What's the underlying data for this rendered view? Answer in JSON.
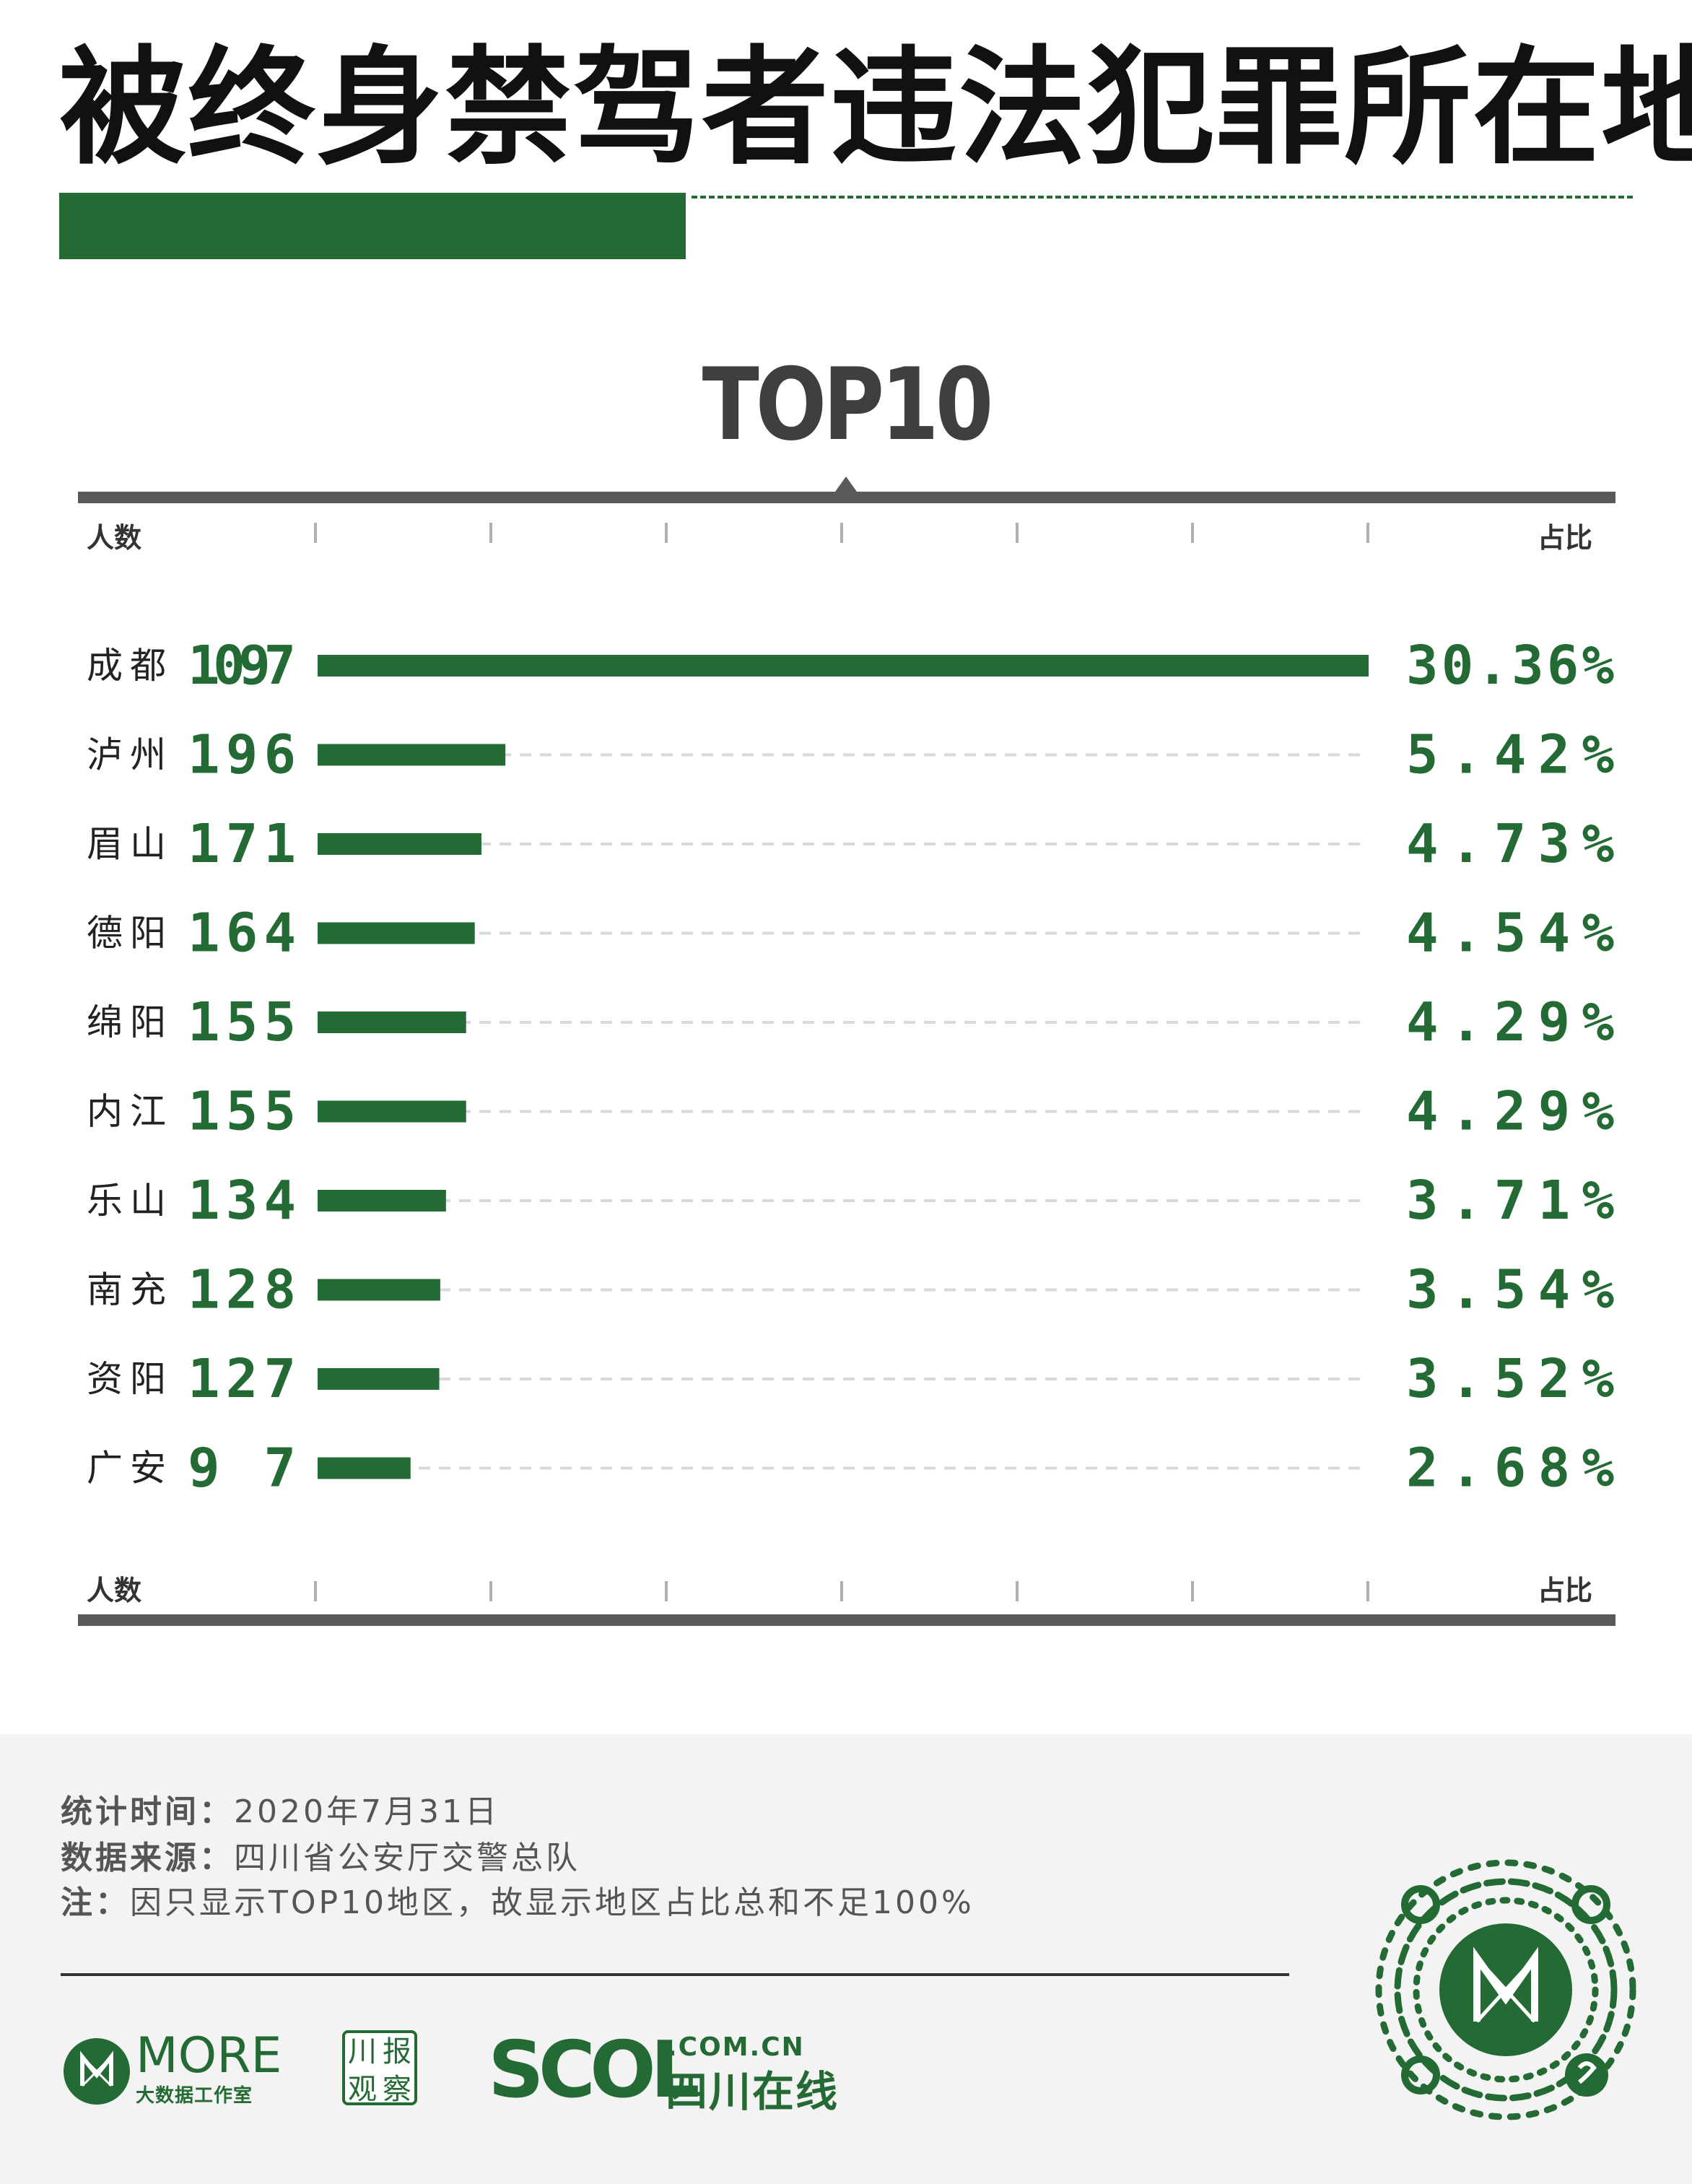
{
  "title": "被终身禁驾者违法犯罪所在地",
  "colors": {
    "accent": "#246a34",
    "axis": "#595959",
    "footer_bg": "#f3f3f3"
  },
  "chart_data": {
    "type": "bar",
    "orientation": "horizontal",
    "title": "TOP10",
    "left_label": "人数",
    "right_label": "占比",
    "categories": [
      "成都",
      "泸州",
      "眉山",
      "德阳",
      "绵阳",
      "内江",
      "乐山",
      "南充",
      "资阳",
      "广安"
    ],
    "values": [
      1097,
      196,
      171,
      164,
      155,
      155,
      134,
      128,
      127,
      97
    ],
    "value_labels": [
      "1097",
      "196",
      "171",
      "164",
      "155",
      "155",
      "134",
      "128",
      "127",
      "97"
    ],
    "percentages": [
      "30.36%",
      "5.42%",
      "4.73%",
      "4.54%",
      "4.29%",
      "4.29%",
      "3.71%",
      "3.54%",
      "3.52%",
      "2.68%"
    ],
    "xlim": [
      0,
      1097
    ],
    "grid": false
  },
  "footer": {
    "stat_time_label": "统计时间：",
    "stat_time_value": "2020年7月31日",
    "source_label": "数据来源：",
    "source_value": "四川省公安厅交警总队",
    "note_label": "注：",
    "note_value": "因只显示TOP10地区，故显示地区占比总和不足100%"
  },
  "logos": {
    "more_word": "MORE",
    "more_sub": "大数据工作室",
    "cbgc_chars": [
      "川",
      "报",
      "观",
      "察"
    ],
    "scol_word": "SCOL",
    "scol_domain": ".COM.CN",
    "scol_cn": "四川在线"
  },
  "icons": {
    "more_logo": "more-logo-icon",
    "qr_code": "qr-code-icon"
  }
}
